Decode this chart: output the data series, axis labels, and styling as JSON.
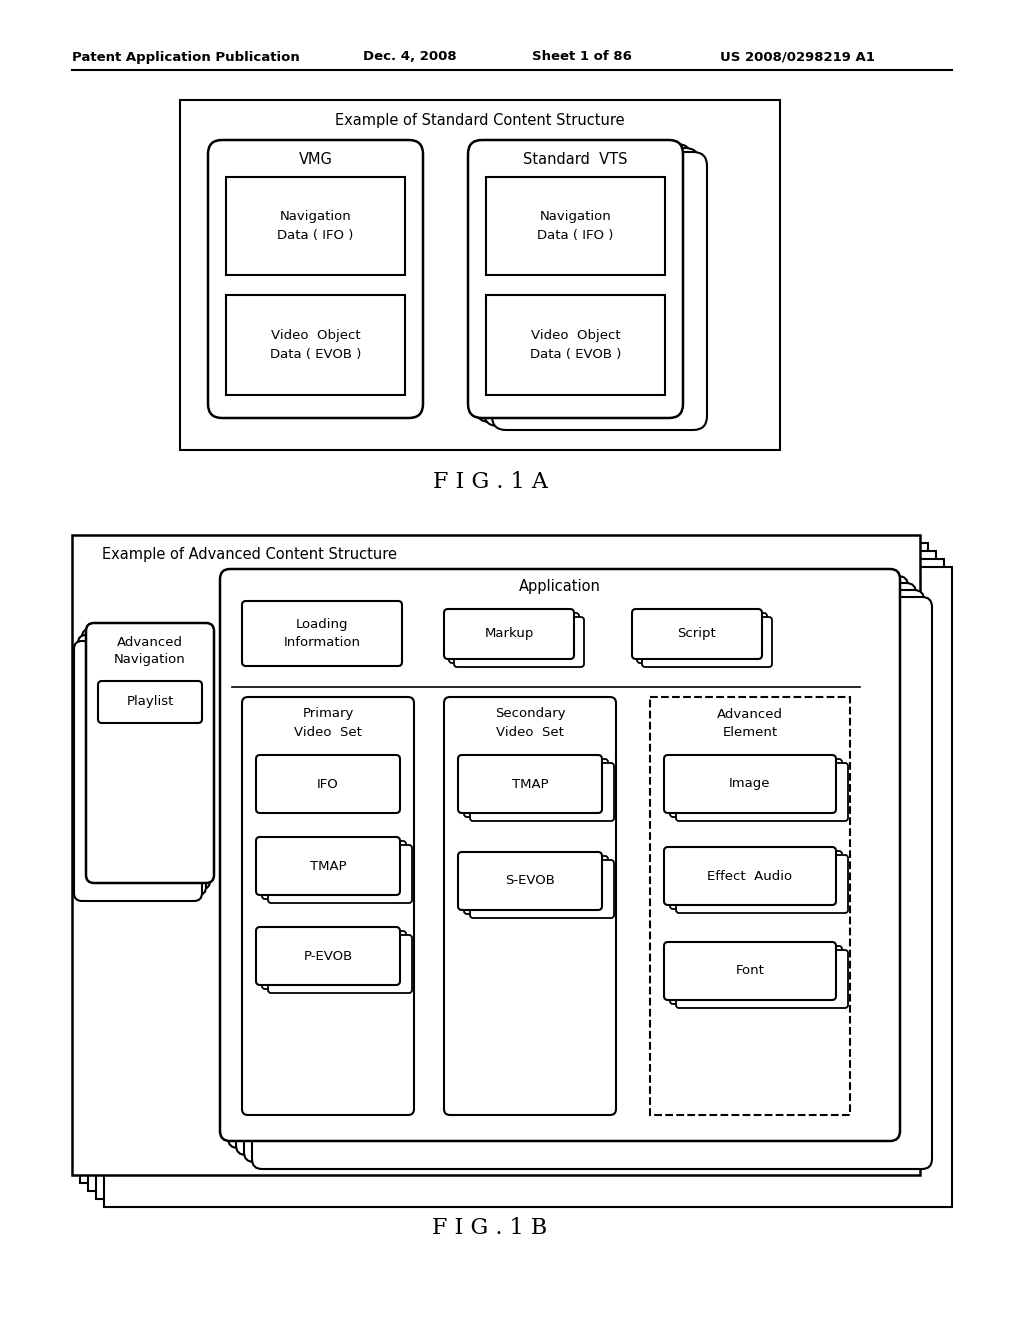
{
  "bg_color": "#ffffff",
  "header_text": "Patent Application Publication",
  "header_date": "Dec. 4, 2008",
  "header_sheet": "Sheet 1 of 86",
  "header_patent": "US 2008/0298219 A1",
  "fig1a_title": "Example of Standard Content Structure",
  "fig1a_label": "F I G . 1 A",
  "vmg_title": "VMG",
  "vts_title": "Standard  VTS",
  "nav_data_text": "Navigation\nData ( IFO )",
  "video_obj_text": "Video  Object\nData ( EVOB )",
  "fig1b_title": "Example of Advanced Content Structure",
  "fig1b_label": "F I G . 1 B",
  "app_title": "Application",
  "adv_nav_title": "Advanced\nNavigation",
  "playlist_text": "Playlist",
  "loading_text": "Loading\nInformation",
  "markup_text": "Markup",
  "script_text": "Script",
  "pvs_title": "Primary\nVideo  Set",
  "svs_title": "Secondary\nVideo  Set",
  "ae_title": "Advanced\nElement",
  "ifo_text": "IFO",
  "tmap_text": "TMAP",
  "pevob_text": "P-EVOB",
  "tmap2_text": "TMAP",
  "sevob_text": "S-EVOB",
  "image_text": "Image",
  "audio_text": "Effect  Audio",
  "font_text": "Font"
}
